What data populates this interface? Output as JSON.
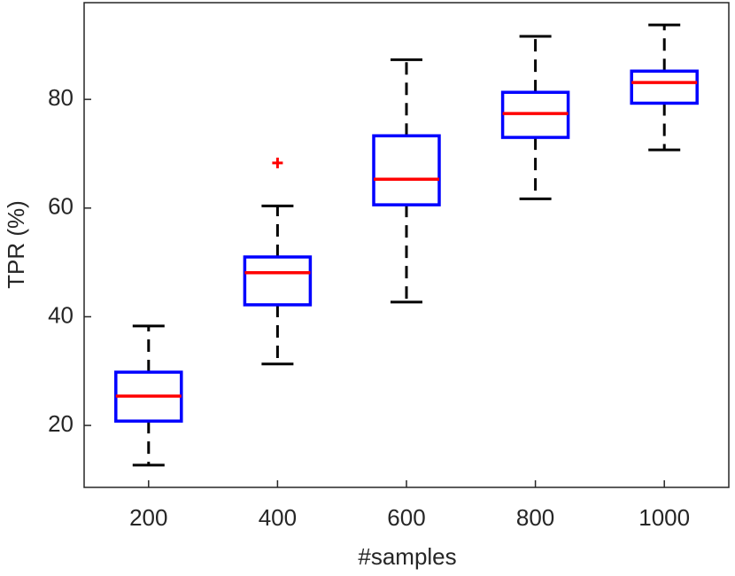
{
  "chart_data": {
    "type": "box",
    "x_label": "#samples",
    "y_label": "TPR (%)",
    "categories": [
      "200",
      "400",
      "600",
      "800",
      "1000"
    ],
    "whisker_low": [
      12.7,
      31.3,
      42.7,
      61.7,
      70.7
    ],
    "q1": [
      20.8,
      42.2,
      60.6,
      73.0,
      79.3
    ],
    "median": [
      25.4,
      48.1,
      65.3,
      77.4,
      83.1
    ],
    "q3": [
      29.8,
      51.0,
      73.3,
      81.3,
      85.2
    ],
    "whisker_high": [
      38.3,
      60.4,
      87.3,
      91.6,
      93.7
    ],
    "outliers": [
      [],
      [
        68.3
      ],
      [],
      [],
      []
    ],
    "box_color": "#0000ff",
    "median_color": "#ff0000",
    "whisker_color": "#000000",
    "outlier_color": "#ff0000",
    "ylim": [
      8.6,
      97.8
    ],
    "yticks": [
      20,
      40,
      60,
      80
    ]
  }
}
